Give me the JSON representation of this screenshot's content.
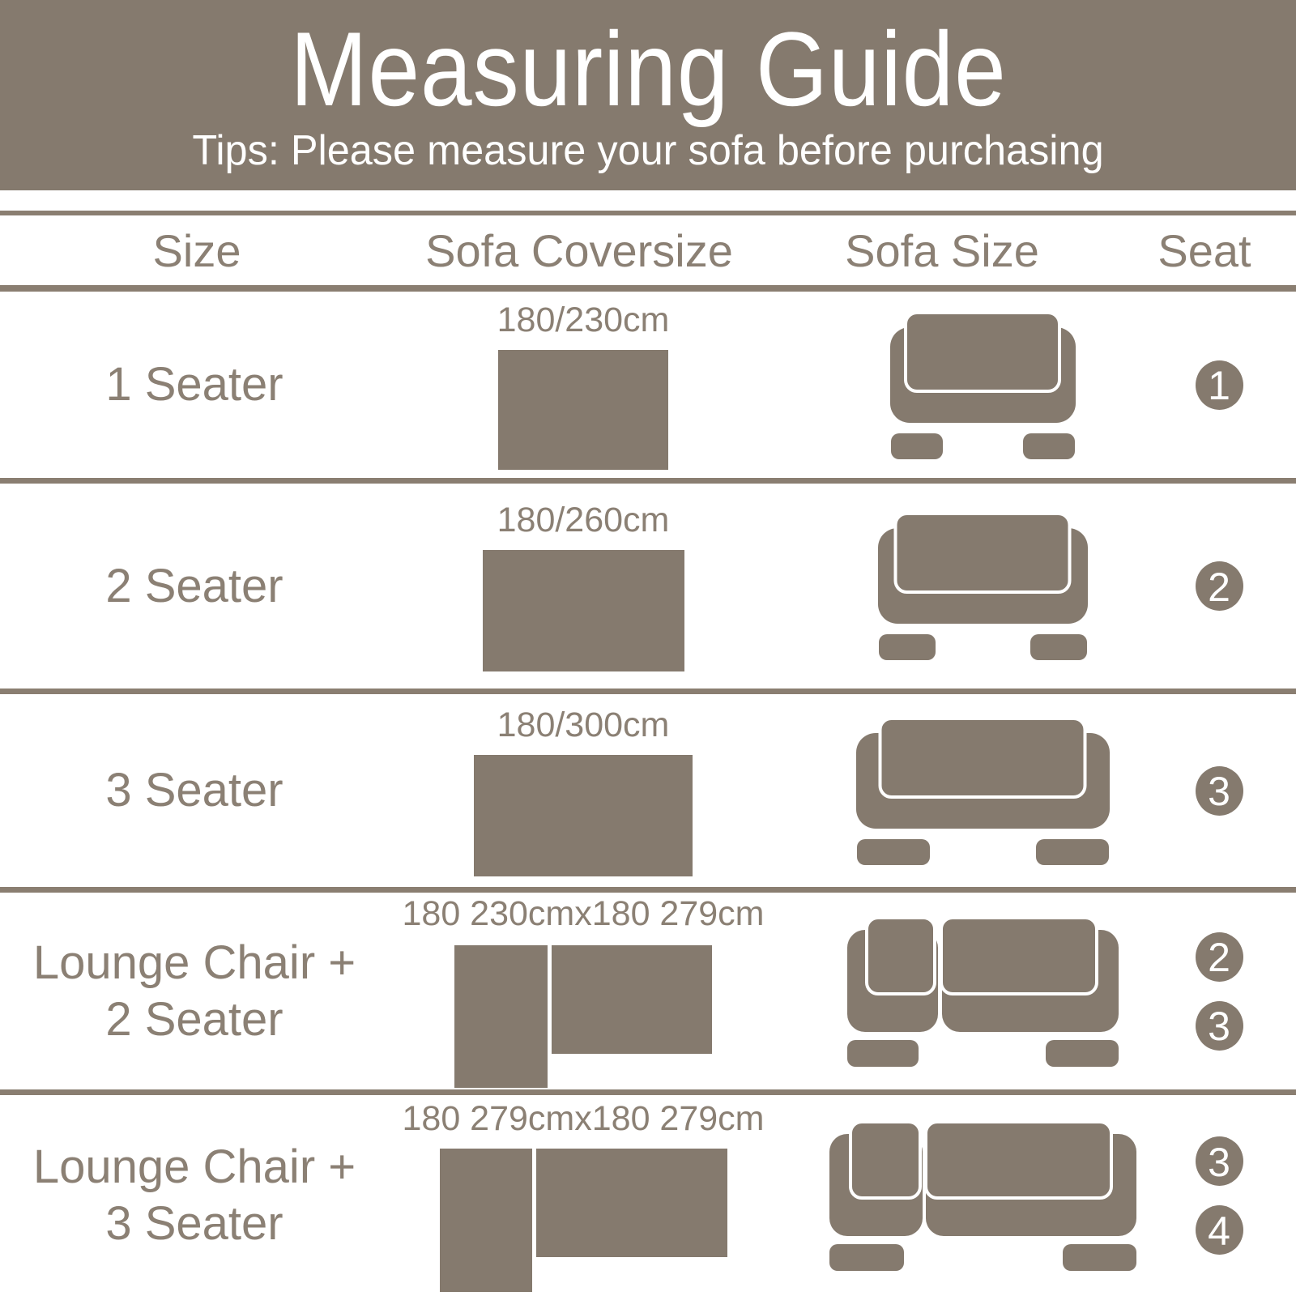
{
  "header": {
    "title": "Measuring Guide",
    "subtitle": "Tips: Please measure your sofa before purchasing"
  },
  "table": {
    "columns": [
      "Size",
      "Sofa Coversize",
      "Sofa Size",
      "Seat"
    ],
    "rows": [
      {
        "size_lines": [
          "1 Seater"
        ],
        "coversize": "180/230cm",
        "sofa_icon": "one-seater-sofa",
        "seats": [
          "1"
        ]
      },
      {
        "size_lines": [
          "2 Seater"
        ],
        "coversize": "180/260cm",
        "sofa_icon": "two-seater-sofa",
        "seats": [
          "2"
        ]
      },
      {
        "size_lines": [
          "3 Seater"
        ],
        "coversize": "180/300cm",
        "sofa_icon": "three-seater-sofa",
        "seats": [
          "3"
        ]
      },
      {
        "size_lines": [
          "Lounge Chair +",
          "2 Seater"
        ],
        "coversize": "180 230cmx180 279cm",
        "sofa_icon": "lounge-chair-plus-2-seater-sofa",
        "seats": [
          "2",
          "3"
        ]
      },
      {
        "size_lines": [
          "Lounge Chair +",
          "3 Seater"
        ],
        "coversize": "180 279cmx180 279cm",
        "sofa_icon": "lounge-chair-plus-3-seater-sofa",
        "seats": [
          "3",
          "4"
        ]
      }
    ]
  },
  "colors": {
    "taupe": "#857a6e",
    "divider": "#8a7e71",
    "text": "#8b8074",
    "white": "#ffffff"
  }
}
